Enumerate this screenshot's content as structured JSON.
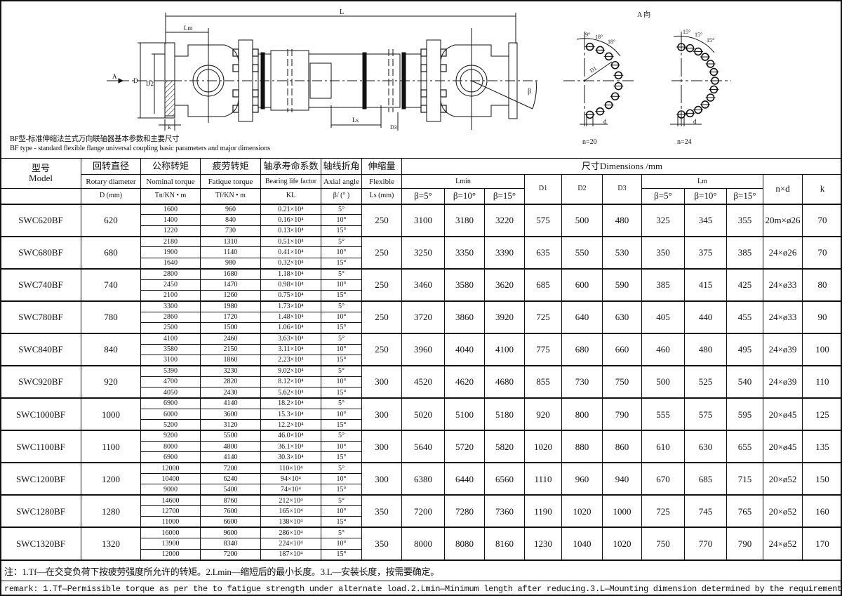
{
  "drawing": {
    "L": "L",
    "Lm": "Lm",
    "D": "D",
    "D2": "D2",
    "Ls": "Ls",
    "D3": "D3",
    "k": "k",
    "beta": "β",
    "A": "A",
    "view_title": "A 向",
    "D1": "D1",
    "ang9": "9°",
    "ang18a": "18°",
    "ang18b": "18°",
    "ang15a": "15°",
    "ang15b": "15°",
    "ang15c": "15°",
    "d1": "d",
    "d2": "d",
    "n20": "n=20",
    "n24": "n=24"
  },
  "caption_cn": "BF型-标准伸缩法兰式万向联轴器基本参数和主要尺寸",
  "caption_en": "BF type - standard flexible flange universal coupling basic parameters and major dimensions",
  "header": {
    "model_cn": "型号",
    "model_en": "Model",
    "rot_cn": "回转直径",
    "rot_en": "Rotary diameter",
    "rot_u": "D (mm)",
    "nom_cn": "公称转矩",
    "nom_en": "Nominal torque",
    "nom_u": "Tn/KN • m",
    "fat_cn": "疲劳转矩",
    "fat_en": "Fatique torque",
    "fat_u": "Tf/KN • m",
    "bear_cn": "轴承寿命系数",
    "bear_en": "Bearing life factor",
    "bear_u": "KL",
    "ang_cn": "轴线折角",
    "ang_en": "Axial angle",
    "ang_u": "β/ (° )",
    "flex_cn": "伸缩量",
    "flex_en": "Flexible",
    "flex_u": "Ls (mm)",
    "dims": "尺寸Dimensions /mm",
    "lmin": "Lmin",
    "d1": "D1",
    "d2": "D2",
    "d3": "D3",
    "lm": "Lm",
    "nd": "n×d",
    "k": "k",
    "b5": "β=5°",
    "b10": "β=10°",
    "b15": "β=15°"
  },
  "rows": [
    {
      "model": "SWC620BF",
      "D": "620",
      "Tn": [
        "1600",
        "1400",
        "1220"
      ],
      "Tf": [
        "960",
        "840",
        "730"
      ],
      "KL": [
        "0.21×10⁴",
        "0.16×10⁴",
        "0.13×10⁴"
      ],
      "beta": [
        "5°",
        "10°",
        "15°"
      ],
      "Ls": "250",
      "Lmin": [
        "3100",
        "3180",
        "3220"
      ],
      "D1": "575",
      "D2": "500",
      "D3": "480",
      "Lm": [
        "325",
        "345",
        "355"
      ],
      "nd": "20m×ø26",
      "k": "70"
    },
    {
      "model": "SWC680BF",
      "D": "680",
      "Tn": [
        "2180",
        "1900",
        "1640"
      ],
      "Tf": [
        "1310",
        "1140",
        "980"
      ],
      "KL": [
        "0.51×10⁴",
        "0.41×10⁴",
        "0.32×10⁴"
      ],
      "beta": [
        "5°",
        "10°",
        "15°"
      ],
      "Ls": "250",
      "Lmin": [
        "3250",
        "3350",
        "3390"
      ],
      "D1": "635",
      "D2": "550",
      "D3": "530",
      "Lm": [
        "350",
        "375",
        "385"
      ],
      "nd": "24×ø26",
      "k": "70"
    },
    {
      "model": "SWC740BF",
      "D": "740",
      "Tn": [
        "2800",
        "2450",
        "2100"
      ],
      "Tf": [
        "1680",
        "1470",
        "1260"
      ],
      "KL": [
        "1.18×10⁴",
        "0.98×10⁴",
        "0.75×10⁴"
      ],
      "beta": [
        "5°",
        "10°",
        "15°"
      ],
      "Ls": "250",
      "Lmin": [
        "3460",
        "3580",
        "3620"
      ],
      "D1": "685",
      "D2": "600",
      "D3": "590",
      "Lm": [
        "385",
        "415",
        "425"
      ],
      "nd": "24×ø33",
      "k": "80"
    },
    {
      "model": "SWC780BF",
      "D": "780",
      "Tn": [
        "3300",
        "2860",
        "2500"
      ],
      "Tf": [
        "1980",
        "1720",
        "1500"
      ],
      "KL": [
        "1.73×10⁴",
        "1.48×10⁴",
        "1.06×10⁴"
      ],
      "beta": [
        "5°",
        "10°",
        "15°"
      ],
      "Ls": "250",
      "Lmin": [
        "3720",
        "3860",
        "3920"
      ],
      "D1": "725",
      "D2": "640",
      "D3": "630",
      "Lm": [
        "405",
        "440",
        "455"
      ],
      "nd": "24×ø33",
      "k": "90"
    },
    {
      "model": "SWC840BF",
      "D": "840",
      "Tn": [
        "4100",
        "3580",
        "3100"
      ],
      "Tf": [
        "2460",
        "2150",
        "1860"
      ],
      "KL": [
        "3.63×10⁴",
        "3.11×10⁴",
        "2.23×10⁴"
      ],
      "beta": [
        "5°",
        "10°",
        "15°"
      ],
      "Ls": "250",
      "Lmin": [
        "3960",
        "4040",
        "4100"
      ],
      "D1": "775",
      "D2": "680",
      "D3": "660",
      "Lm": [
        "460",
        "480",
        "495"
      ],
      "nd": "24×ø39",
      "k": "100"
    },
    {
      "model": "SWC920BF",
      "D": "920",
      "Tn": [
        "5390",
        "4700",
        "4050"
      ],
      "Tf": [
        "3230",
        "2820",
        "2430"
      ],
      "KL": [
        "9.02×10⁴",
        "8.12×10⁴",
        "5.62×10⁴"
      ],
      "beta": [
        "5°",
        "10°",
        "15°"
      ],
      "Ls": "300",
      "Lmin": [
        "4520",
        "4620",
        "4680"
      ],
      "D1": "855",
      "D2": "730",
      "D3": "750",
      "Lm": [
        "500",
        "525",
        "540"
      ],
      "nd": "24×ø39",
      "k": "110"
    },
    {
      "model": "SWC1000BF",
      "D": "1000",
      "Tn": [
        "6900",
        "6000",
        "5200"
      ],
      "Tf": [
        "4140",
        "3600",
        "3120"
      ],
      "KL": [
        "18.2×10⁴",
        "15.3×10⁴",
        "12.2×10⁴"
      ],
      "beta": [
        "5°",
        "10°",
        "15°"
      ],
      "Ls": "300",
      "Lmin": [
        "5020",
        "5100",
        "5180"
      ],
      "D1": "920",
      "D2": "800",
      "D3": "790",
      "Lm": [
        "555",
        "575",
        "595"
      ],
      "nd": "20×ø45",
      "k": "125"
    },
    {
      "model": "SWC1100BF",
      "D": "1100",
      "Tn": [
        "9200",
        "8000",
        "6900"
      ],
      "Tf": [
        "5500",
        "4800",
        "4140"
      ],
      "KL": [
        "46.0×10⁴",
        "36.1×10⁴",
        "30.3×10⁴"
      ],
      "beta": [
        "5°",
        "10°",
        "15°"
      ],
      "Ls": "300",
      "Lmin": [
        "5640",
        "5720",
        "5820"
      ],
      "D1": "1020",
      "D2": "880",
      "D3": "860",
      "Lm": [
        "610",
        "630",
        "655"
      ],
      "nd": "20×ø45",
      "k": "135"
    },
    {
      "model": "SWC1200BF",
      "D": "1200",
      "Tn": [
        "12000",
        "10400",
        "9000"
      ],
      "Tf": [
        "7200",
        "6240",
        "5400"
      ],
      "KL": [
        "110×10⁴",
        "94×10⁴",
        "74×10⁴"
      ],
      "beta": [
        "5°",
        "10°",
        "15°"
      ],
      "Ls": "300",
      "Lmin": [
        "6380",
        "6440",
        "6560"
      ],
      "D1": "1110",
      "D2": "960",
      "D3": "940",
      "Lm": [
        "670",
        "685",
        "715"
      ],
      "nd": "20×ø52",
      "k": "150"
    },
    {
      "model": "SWC1280BF",
      "D": "1280",
      "Tn": [
        "14600",
        "12700",
        "11000"
      ],
      "Tf": [
        "8760",
        "7600",
        "6600"
      ],
      "KL": [
        "212×10⁴",
        "165×10⁴",
        "138×10⁴"
      ],
      "beta": [
        "5°",
        "10°",
        "15°"
      ],
      "Ls": "350",
      "Lmin": [
        "7200",
        "7280",
        "7360"
      ],
      "D1": "1190",
      "D2": "1020",
      "D3": "1000",
      "Lm": [
        "725",
        "745",
        "765"
      ],
      "nd": "20×ø52",
      "k": "160"
    },
    {
      "model": "SWC1320BF",
      "D": "1320",
      "Tn": [
        "16000",
        "13900",
        "12000"
      ],
      "Tf": [
        "9600",
        "8340",
        "7200"
      ],
      "KL": [
        "286×10⁴",
        "224×10⁴",
        "187×10⁴"
      ],
      "beta": [
        "5°",
        "10°",
        "15°"
      ],
      "Ls": "350",
      "Lmin": [
        "8000",
        "8080",
        "8160"
      ],
      "D1": "1230",
      "D2": "1040",
      "D3": "1020",
      "Lm": [
        "750",
        "770",
        "790"
      ],
      "nd": "24×ø52",
      "k": "170"
    }
  ],
  "notes": {
    "cn": "注：1.Tf—在交变负荷下按疲劳强度所允许的转矩。2.Lmin—缩短后的最小长度。3.L—安装长度，按需要确定。",
    "en": "remark: 1.Tf—Permissible torque as per the to fatigue strength under alternate load.2.Lmin—Minimum length after reducing.3.L—Mounting dimension determined by the requirement."
  }
}
